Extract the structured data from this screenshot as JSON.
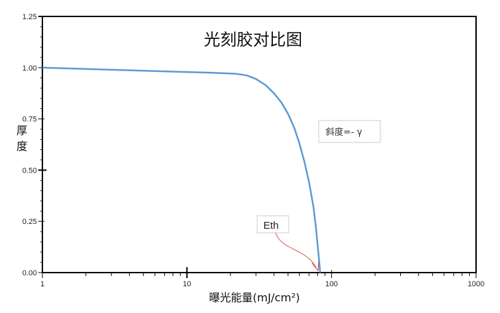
{
  "chart_data": {
    "type": "line",
    "title": "光刻胶对比图",
    "xlabel": "曝光能量(mJ/cm²)",
    "ylabel": "厚度",
    "x_scale": "log",
    "xlim": [
      1,
      1000
    ],
    "ylim": [
      0,
      1.25
    ],
    "x_ticks": [
      1,
      10,
      100,
      1000
    ],
    "x_tick_labels": [
      "1",
      "10",
      "100",
      "1000"
    ],
    "y_ticks": [
      0,
      0.25,
      0.5,
      0.75,
      1.0,
      1.25
    ],
    "y_tick_labels": [
      "0.00",
      "0.25",
      "0.50",
      "0.75",
      "1.00",
      "1.25"
    ],
    "grid": false,
    "line_color": "#5b9bd5",
    "arrow_color": "#d9534f",
    "series": [
      {
        "x": [
          1,
          5,
          15,
          22,
          26,
          30,
          35,
          40,
          45,
          50,
          55,
          60,
          65,
          70,
          75,
          78,
          80,
          82,
          83.5
        ],
        "values": [
          1.0,
          0.985,
          0.975,
          0.97,
          0.962,
          0.945,
          0.915,
          0.875,
          0.83,
          0.775,
          0.71,
          0.63,
          0.54,
          0.44,
          0.32,
          0.22,
          0.14,
          0.06,
          0.0
        ]
      }
    ],
    "annotations": [
      {
        "text": "斜度=- γ",
        "x": 125,
        "y": 0.7
      },
      {
        "text": "Eth",
        "x": 52,
        "y": 0.24,
        "arrow_to_x": 83.5,
        "arrow_to_y": 0.0
      }
    ]
  }
}
